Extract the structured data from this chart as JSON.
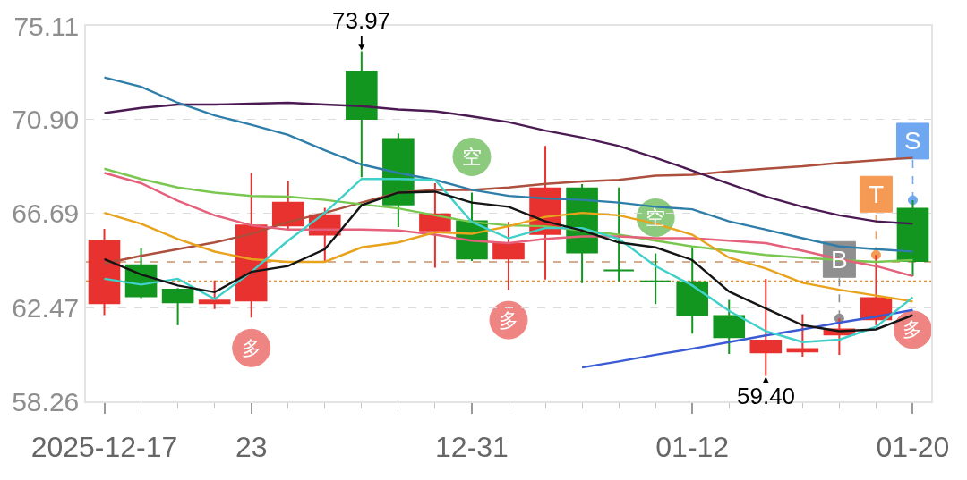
{
  "chart_data": {
    "type": "candlestick",
    "categories": [
      "2025-12-17",
      null,
      null,
      null,
      "23",
      null,
      null,
      null,
      null,
      null,
      "12-31",
      null,
      null,
      null,
      null,
      null,
      "01-12",
      null,
      null,
      null,
      null,
      null,
      "01-20"
    ],
    "ylim": [
      58.26,
      75.11
    ],
    "yticks": [
      58.26,
      62.47,
      66.69,
      {
        "value": 70.9,
        "label": "70.90"
      },
      75.11
    ],
    "grid": "y",
    "ohlc": [
      [
        62.66,
        66.0,
        62.13,
        65.47
      ],
      [
        64.37,
        65.13,
        62.89,
        62.97
      ],
      [
        63.27,
        63.35,
        61.68,
        62.7
      ],
      [
        62.66,
        63.69,
        62.4,
        62.78
      ],
      [
        62.78,
        68.51,
        62.02,
        66.15
      ],
      [
        66.15,
        68.17,
        65.93,
        67.18
      ],
      [
        65.74,
        66.95,
        64.56,
        66.61
      ],
      [
        73.06,
        73.97,
        68.32,
        70.94
      ],
      [
        70.03,
        70.29,
        66.08,
        67.1
      ],
      [
        65.93,
        68.05,
        64.26,
        66.65
      ],
      [
        66.34,
        67.63,
        64.56,
        64.67
      ],
      [
        64.67,
        66.31,
        63.27,
        65.32
      ],
      [
        65.77,
        69.72,
        63.73,
        67.82
      ],
      [
        67.82,
        68.01,
        63.57,
        64.94
      ],
      [
        64.14,
        67.86,
        63.65,
        64.14
      ],
      [
        63.65,
        64.9,
        62.62,
        63.65
      ],
      [
        63.61,
        65.21,
        61.3,
        62.13
      ],
      [
        62.09,
        62.81,
        60.39,
        61.14
      ],
      [
        60.46,
        63.76,
        59.4,
        60.99
      ],
      [
        60.5,
        62.17,
        60.27,
        60.61
      ],
      [
        61.26,
        61.98,
        60.35,
        61.49
      ],
      [
        61.94,
        64.83,
        61.68,
        62.89
      ],
      [
        66.91,
        67.29,
        63.88,
        64.56
      ]
    ],
    "colors": [
      "#e8322f",
      "#12961f",
      "#12961f",
      "#e8322f",
      "#e8322f",
      "#e8322f",
      "#e8322f",
      "#12961f",
      "#12961f",
      "#e8322f",
      "#12961f",
      "#e8322f",
      "#e8322f",
      "#12961f",
      "#12961f",
      "#12961f",
      "#12961f",
      "#12961f",
      "#e8322f",
      "#e8322f",
      "#e8322f",
      "#e8322f",
      "#12961f"
    ],
    "series": [
      {
        "type": "line",
        "color": "#ad4f3d",
        "values": [
          64.45,
          64.79,
          65.09,
          65.39,
          65.78,
          66.31,
          66.72,
          67.18,
          67.63,
          67.75,
          67.75,
          67.86,
          68.02,
          68.13,
          68.2,
          68.39,
          68.43,
          68.58,
          68.7,
          68.81,
          68.96,
          69.08,
          69.19
        ]
      },
      {
        "type": "line",
        "color": "#4b1a52",
        "values": [
          71.2,
          71.43,
          71.58,
          71.58,
          71.62,
          71.66,
          71.58,
          71.51,
          71.36,
          71.28,
          71.05,
          70.79,
          70.41,
          70.1,
          69.72,
          69.19,
          68.62,
          68.02,
          67.45,
          66.99,
          66.61,
          66.34,
          66.23
        ]
      },
      {
        "type": "line",
        "color": "#2f7ea9",
        "values": [
          72.8,
          72.38,
          71.66,
          71.09,
          70.67,
          70.22,
          69.53,
          68.89,
          68.51,
          68.2,
          67.75,
          67.48,
          67.37,
          67.3,
          67.18,
          66.99,
          66.88,
          66.34,
          65.97,
          65.58,
          65.21,
          65.09,
          64.98
        ]
      },
      {
        "type": "line",
        "color": "#7ac74f",
        "values": [
          68.7,
          68.24,
          67.86,
          67.63,
          67.48,
          67.45,
          67.3,
          67.1,
          66.92,
          66.61,
          66.31,
          66.16,
          66.12,
          65.93,
          65.74,
          65.47,
          65.21,
          65.02,
          64.83,
          64.71,
          64.6,
          64.52,
          64.6
        ]
      },
      {
        "type": "line",
        "color": "#e5607a",
        "values": [
          68.51,
          68.05,
          67.26,
          66.61,
          66.16,
          65.97,
          65.97,
          65.97,
          65.93,
          65.74,
          65.47,
          65.36,
          65.55,
          65.66,
          65.66,
          65.58,
          65.58,
          65.47,
          65.36,
          65.02,
          64.64,
          64.33,
          63.88
        ]
      },
      {
        "type": "line",
        "color": "#e8a21c",
        "values": [
          66.72,
          66.23,
          65.55,
          64.98,
          64.64,
          64.52,
          64.52,
          65.17,
          65.39,
          65.85,
          65.78,
          66.12,
          66.54,
          66.72,
          66.61,
          66.23,
          65.74,
          64.71,
          64.22,
          63.58,
          63.27,
          63.01,
          62.74
        ]
      },
      {
        "type": "line",
        "color": "#3b5bd5",
        "values": [
          null,
          null,
          null,
          null,
          null,
          null,
          null,
          null,
          null,
          null,
          null,
          null,
          null,
          59.78,
          60.05,
          60.35,
          60.62,
          60.92,
          61.22,
          61.49,
          61.79,
          62.06,
          62.36
        ]
      },
      {
        "type": "line",
        "color": "#3fd0c9",
        "values": [
          63.76,
          63.5,
          63.76,
          62.85,
          64.07,
          65.47,
          66.72,
          68.24,
          68.24,
          68.2,
          66.31,
          65.58,
          66.04,
          66.04,
          65.55,
          64.33,
          63.46,
          62.32,
          61.41,
          60.92,
          61.03,
          61.6,
          62.93
        ]
      },
      {
        "type": "line",
        "color": "#151515",
        "values": [
          64.64,
          63.95,
          63.46,
          63.16,
          64.07,
          64.33,
          65.09,
          67.06,
          67.63,
          67.67,
          67.18,
          66.99,
          66.34,
          65.93,
          65.39,
          65.17,
          64.6,
          63.19,
          62.43,
          61.68,
          61.41,
          61.49,
          62.13
        ]
      }
    ],
    "ref_lines": [
      {
        "axis": "y",
        "value": 64.52,
        "color": "#c8926a",
        "line_style": "dashed"
      },
      {
        "axis": "y",
        "value": 63.65,
        "color": "#d98c3a",
        "line_style": "dotted"
      }
    ],
    "annotations": [
      {
        "text": "73.97",
        "y": 73.97
      },
      {
        "text": "59.40",
        "y": 59.4
      },
      {
        "text": "空",
        "y": 67.63
      },
      {
        "text": "空",
        "y": 64.9
      },
      {
        "text": "多",
        "y": 62.02
      },
      {
        "text": "多",
        "y": 63.27
      },
      {
        "text": "多",
        "y": 63.88
      },
      {
        "text": "B",
        "y": 61.98
      },
      {
        "text": "T",
        "y": 64.83
      },
      {
        "text": "S",
        "y": 67.29
      }
    ]
  }
}
